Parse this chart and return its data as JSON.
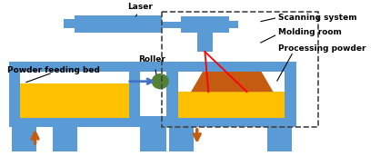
{
  "fig_width": 4.29,
  "fig_height": 1.72,
  "dpi": 100,
  "bg_color": "#ffffff",
  "blue": "#5B9BD5",
  "gold": "#FFC000",
  "orange_brown": "#C55A11",
  "green": "#548235",
  "arrow_orange": "#C05020",
  "arrow_blue": "#4472C4",
  "red_line": "#FF0000",
  "labels": {
    "laser": "Laser",
    "roller": "Roller",
    "powder_bed": "Powder feeding bed",
    "scanning": "Scanning system",
    "molding": "Molding room",
    "processing": "Processing powder"
  }
}
